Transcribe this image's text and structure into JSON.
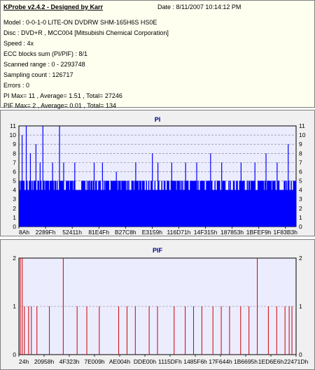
{
  "info": {
    "title": "KProbe v2.4.2 - Designed by Karr",
    "date": "Date : 8/11/2007 10:14:12 PM",
    "lines": [
      "Model : 0-0-1-0 LITE-ON DVDRW SHM-165H6S HS0E",
      "Disc : DVD+R , MCC004 [Mitsubishi Chemical Corporation]",
      "Speed : 4x",
      "ECC blocks sum (PI/PIF) : 8/1",
      "Scanned range : 0 - 2293748",
      "Sampling count : 126717",
      "Errors : 0",
      "PI Max= 11 , Average= 1.51 , Total= 27246",
      "PIF Max= 2 , Average= 0.01 , Total= 134"
    ]
  },
  "colors": {
    "pi": "#0000ff",
    "pif": "#cc0000",
    "plot_bg": "#ececff",
    "grid": "#7a7a7a",
    "title": "#00008b"
  },
  "chart_data": [
    {
      "type": "bar",
      "title": "PI",
      "ylim": [
        0,
        11
      ],
      "yticks": [
        "0",
        "1",
        "2",
        "3",
        "4",
        "5",
        "6",
        "7",
        "8",
        "9",
        "10",
        "11"
      ],
      "xticks": [
        "8Ah",
        "2289Fh",
        "52411h",
        "81E4Fh",
        "B27C8h",
        "E3159h",
        "116D71h",
        "14F315h",
        "187853h",
        "1BFEF9h",
        "1F83B3h"
      ],
      "grid": true,
      "baseline_values": [
        4,
        5
      ],
      "spikes": [
        [
          0.01,
          10
        ],
        [
          0.025,
          11
        ],
        [
          0.04,
          8
        ],
        [
          0.06,
          9
        ],
        [
          0.075,
          7
        ],
        [
          0.085,
          11
        ],
        [
          0.12,
          7
        ],
        [
          0.145,
          11
        ],
        [
          0.16,
          7
        ],
        [
          0.2,
          7
        ],
        [
          0.27,
          7
        ],
        [
          0.3,
          7
        ],
        [
          0.35,
          6
        ],
        [
          0.42,
          7
        ],
        [
          0.48,
          8
        ],
        [
          0.5,
          7
        ],
        [
          0.55,
          7
        ],
        [
          0.6,
          7
        ],
        [
          0.64,
          7
        ],
        [
          0.69,
          8
        ],
        [
          0.73,
          7
        ],
        [
          0.8,
          7
        ],
        [
          0.85,
          7
        ],
        [
          0.89,
          8
        ],
        [
          0.93,
          7
        ],
        [
          0.97,
          9
        ]
      ]
    },
    {
      "type": "bar",
      "title": "PIF",
      "ylim": [
        0,
        2
      ],
      "yticks": [
        "0",
        "1",
        "2"
      ],
      "xticks": [
        "24h",
        "20958h",
        "4F323h",
        "7E009h",
        "AE004h",
        "DDE00h",
        "1115DFh",
        "1485F6h",
        "17F644h",
        "1B6695h",
        "1ED6E6h",
        "22471Dh"
      ],
      "grid": true,
      "bars": [
        [
          0.005,
          2
        ],
        [
          0.012,
          2
        ],
        [
          0.02,
          1
        ],
        [
          0.035,
          1
        ],
        [
          0.045,
          1
        ],
        [
          0.065,
          1
        ],
        [
          0.11,
          1
        ],
        [
          0.16,
          2
        ],
        [
          0.21,
          1
        ],
        [
          0.245,
          1
        ],
        [
          0.29,
          1
        ],
        [
          0.36,
          1
        ],
        [
          0.39,
          1
        ],
        [
          0.42,
          1
        ],
        [
          0.47,
          1
        ],
        [
          0.5,
          1
        ],
        [
          0.56,
          1
        ],
        [
          0.6,
          1
        ],
        [
          0.63,
          1
        ],
        [
          0.66,
          1
        ],
        [
          0.7,
          1
        ],
        [
          0.73,
          1
        ],
        [
          0.76,
          1
        ],
        [
          0.8,
          1
        ],
        [
          0.83,
          1
        ],
        [
          0.86,
          2
        ],
        [
          0.9,
          1
        ],
        [
          0.93,
          1
        ],
        [
          0.96,
          1
        ],
        [
          0.975,
          1
        ],
        [
          0.985,
          1
        ]
      ]
    }
  ]
}
